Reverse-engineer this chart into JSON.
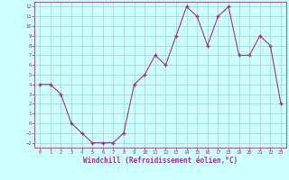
{
  "x_vals": [
    0,
    1,
    2,
    3,
    4,
    5,
    6,
    7,
    8,
    9,
    10,
    11,
    12,
    13,
    14,
    15,
    16,
    17,
    18,
    19,
    20,
    21,
    22,
    23
  ],
  "y_vals": [
    4,
    4,
    3,
    0,
    -1,
    -2,
    -2,
    -2,
    -1,
    4,
    5,
    7,
    6,
    9,
    12,
    11,
    8,
    11,
    12,
    7,
    7,
    9,
    8,
    2
  ],
  "line_color": "#993399",
  "marker_color": "#993399",
  "bg_color": "#ccffff",
  "grid_color": "#aacccc",
  "xlabel": "Windchill (Refroidissement éolien,°C)",
  "ylim_min": -2,
  "ylim_max": 12,
  "xlim_min": 0,
  "xlim_max": 23,
  "yticks": [
    -2,
    -1,
    0,
    1,
    2,
    3,
    4,
    5,
    6,
    7,
    8,
    9,
    10,
    11,
    12
  ],
  "xticks": [
    0,
    1,
    2,
    3,
    4,
    5,
    6,
    7,
    8,
    9,
    10,
    11,
    12,
    13,
    14,
    15,
    16,
    17,
    18,
    19,
    20,
    21,
    22,
    23
  ],
  "tick_color": "#993399",
  "font_family": "monospace",
  "tick_fontsize": 4.0,
  "xlabel_fontsize": 5.5
}
